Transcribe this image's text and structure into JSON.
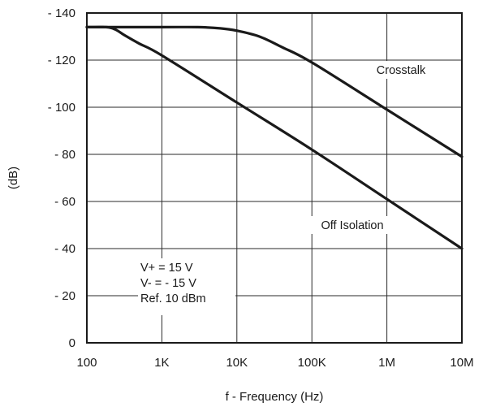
{
  "chart_data": {
    "type": "line",
    "xlabel": "f - Frequency (Hz)",
    "ylabel": "(dB)",
    "x_scale": "log",
    "x_ticks": [
      100,
      1000,
      10000,
      100000,
      1000000,
      10000000
    ],
    "x_tick_labels": [
      "100",
      "1K",
      "10K",
      "100K",
      "1M",
      "10M"
    ],
    "y_ticks": [
      0,
      20,
      40,
      60,
      80,
      100,
      120,
      140
    ],
    "y_tick_labels": [
      "0",
      "- 20",
      "- 40",
      "- 60",
      "- 80",
      "- 100",
      "- 120",
      "- 140"
    ],
    "xlim": [
      100,
      10000000
    ],
    "ylim": [
      0,
      140
    ],
    "grid": true,
    "series": [
      {
        "name": "Crosstalk",
        "x": [
          100,
          1000,
          3000,
          6000,
          10000,
          20000,
          40000,
          100000,
          1000000,
          10000000
        ],
        "y": [
          134,
          134,
          134,
          133.5,
          132.5,
          130,
          125.5,
          119,
          99,
          79
        ]
      },
      {
        "name": "Off Isolation",
        "x": [
          100,
          180,
          240,
          320,
          500,
          1000,
          10000,
          100000,
          1000000,
          10000000
        ],
        "y": [
          134,
          134,
          133,
          130.5,
          127,
          122,
          102,
          82,
          61,
          40
        ]
      }
    ],
    "annotations": [
      "V+ = 15 V",
      "V- = - 15 V",
      "Ref. 10 dBm"
    ]
  }
}
